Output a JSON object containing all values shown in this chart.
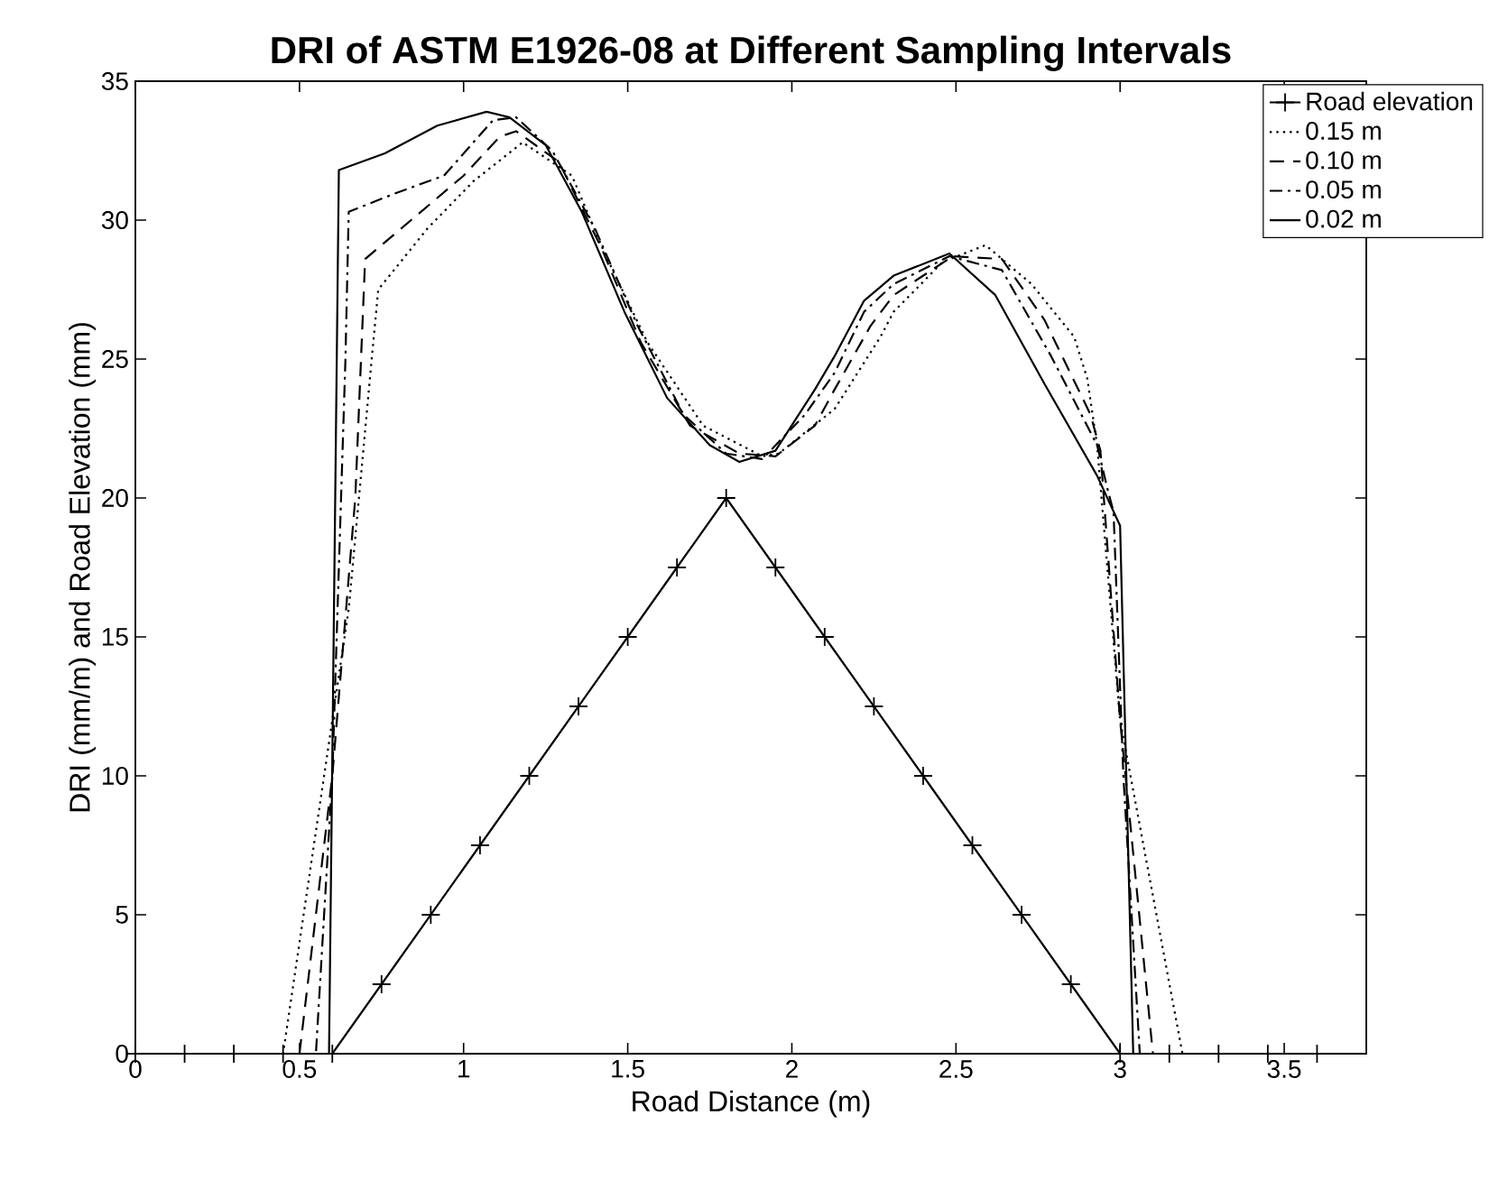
{
  "chart_data": {
    "type": "line",
    "title": "DRI of ASTM E1926-08 at Different Sampling Intervals",
    "xlabel": "Road Distance (m)",
    "ylabel": "DRI (mm/m) and Road Elevation (mm)",
    "xlim": [
      0,
      3.75
    ],
    "ylim": [
      0,
      35
    ],
    "xticks": [
      0,
      0.5,
      1,
      1.5,
      2,
      2.5,
      3,
      3.5
    ],
    "yticks": [
      0,
      5,
      10,
      15,
      20,
      25,
      30,
      35
    ],
    "legend": "top right",
    "grid": false,
    "series": [
      {
        "name": "Road elevation",
        "color": "#000000",
        "marker": "cross",
        "line_style": "solid",
        "x": [
          0,
          0.15,
          0.3,
          0.45,
          0.6,
          0.75,
          0.9,
          1.05,
          1.2,
          1.35,
          1.5,
          1.65,
          1.8,
          1.95,
          2.1,
          2.25,
          2.4,
          2.55,
          2.7,
          2.85,
          3.0,
          3.15,
          3.3,
          3.45,
          3.6
        ],
        "values": [
          0,
          0,
          0,
          0,
          0,
          2.5,
          5,
          7.5,
          10,
          12.5,
          15,
          17.5,
          20,
          17.5,
          15,
          12.5,
          10,
          7.5,
          5,
          2.5,
          0,
          0,
          0,
          0,
          0
        ]
      },
      {
        "name": "0.15 m",
        "color": "#000000",
        "marker": "none",
        "line_style": "dotted",
        "x": [
          0,
          0.45,
          0.55,
          0.65,
          0.72,
          0.74,
          0.89,
          1.03,
          1.18,
          1.33,
          1.43,
          1.56,
          1.73,
          1.91,
          1.96,
          2.13,
          2.27,
          2.31,
          2.46,
          2.59,
          2.73,
          2.86,
          2.9,
          2.93,
          3.0,
          3.19,
          3.75
        ],
        "values": [
          0,
          0,
          8,
          16,
          25,
          27.5,
          29.7,
          31.4,
          32.8,
          31.6,
          28.8,
          25.6,
          22.6,
          21.5,
          21.6,
          23.2,
          25.8,
          26.7,
          28.5,
          29.1,
          27.7,
          25.8,
          24.3,
          21.9,
          12,
          0,
          0
        ]
      },
      {
        "name": "0.10 m",
        "color": "#000000",
        "marker": "none",
        "line_style": "dashed",
        "x": [
          0,
          0.5,
          0.6,
          0.67,
          0.7,
          0.85,
          1.0,
          1.11,
          1.16,
          1.29,
          1.42,
          1.54,
          1.69,
          1.84,
          1.95,
          2.07,
          2.13,
          2.24,
          2.31,
          2.49,
          2.64,
          2.77,
          2.91,
          2.94,
          3.0,
          3.1,
          3.75
        ],
        "values": [
          0,
          0,
          10,
          20,
          28.6,
          30.1,
          31.6,
          33.0,
          33.2,
          32.1,
          29.0,
          25.6,
          22.6,
          21.6,
          21.5,
          22.6,
          23.9,
          26.2,
          27.3,
          28.7,
          28.6,
          26.4,
          23.0,
          21.7,
          12,
          0,
          0
        ]
      },
      {
        "name": "0.05 m",
        "color": "#000000",
        "marker": "none",
        "line_style": "dashdot",
        "x": [
          0,
          0.55,
          0.6,
          0.64,
          0.65,
          0.8,
          0.94,
          1.09,
          1.16,
          1.27,
          1.4,
          1.53,
          1.67,
          1.8,
          1.91,
          2.04,
          2.13,
          2.22,
          2.31,
          2.48,
          2.64,
          2.79,
          2.93,
          2.96,
          2.98,
          3.01,
          3.06,
          3.75
        ],
        "values": [
          0,
          0,
          10,
          25,
          30.3,
          31.0,
          31.6,
          33.6,
          33.7,
          32.5,
          29.7,
          26.2,
          23.0,
          21.6,
          21.4,
          23.0,
          24.5,
          26.7,
          27.7,
          28.7,
          28.2,
          25.1,
          21.9,
          20.4,
          19.5,
          10,
          0,
          0
        ]
      },
      {
        "name": "0.02 m",
        "color": "#000000",
        "marker": "none",
        "line_style": "solid",
        "x": [
          0,
          0.59,
          0.62,
          0.76,
          0.92,
          1.07,
          1.14,
          1.25,
          1.36,
          1.49,
          1.62,
          1.75,
          1.84,
          1.95,
          2.07,
          2.13,
          2.22,
          2.31,
          2.48,
          2.62,
          2.77,
          2.93,
          3.0,
          3.04,
          3.75
        ],
        "values": [
          0,
          0,
          31.8,
          32.4,
          33.4,
          33.9,
          33.7,
          32.7,
          30.3,
          26.7,
          23.6,
          21.9,
          21.3,
          21.7,
          23.9,
          25.1,
          27.1,
          28.0,
          28.8,
          27.3,
          24.1,
          20.8,
          19.0,
          0,
          0
        ]
      }
    ]
  }
}
